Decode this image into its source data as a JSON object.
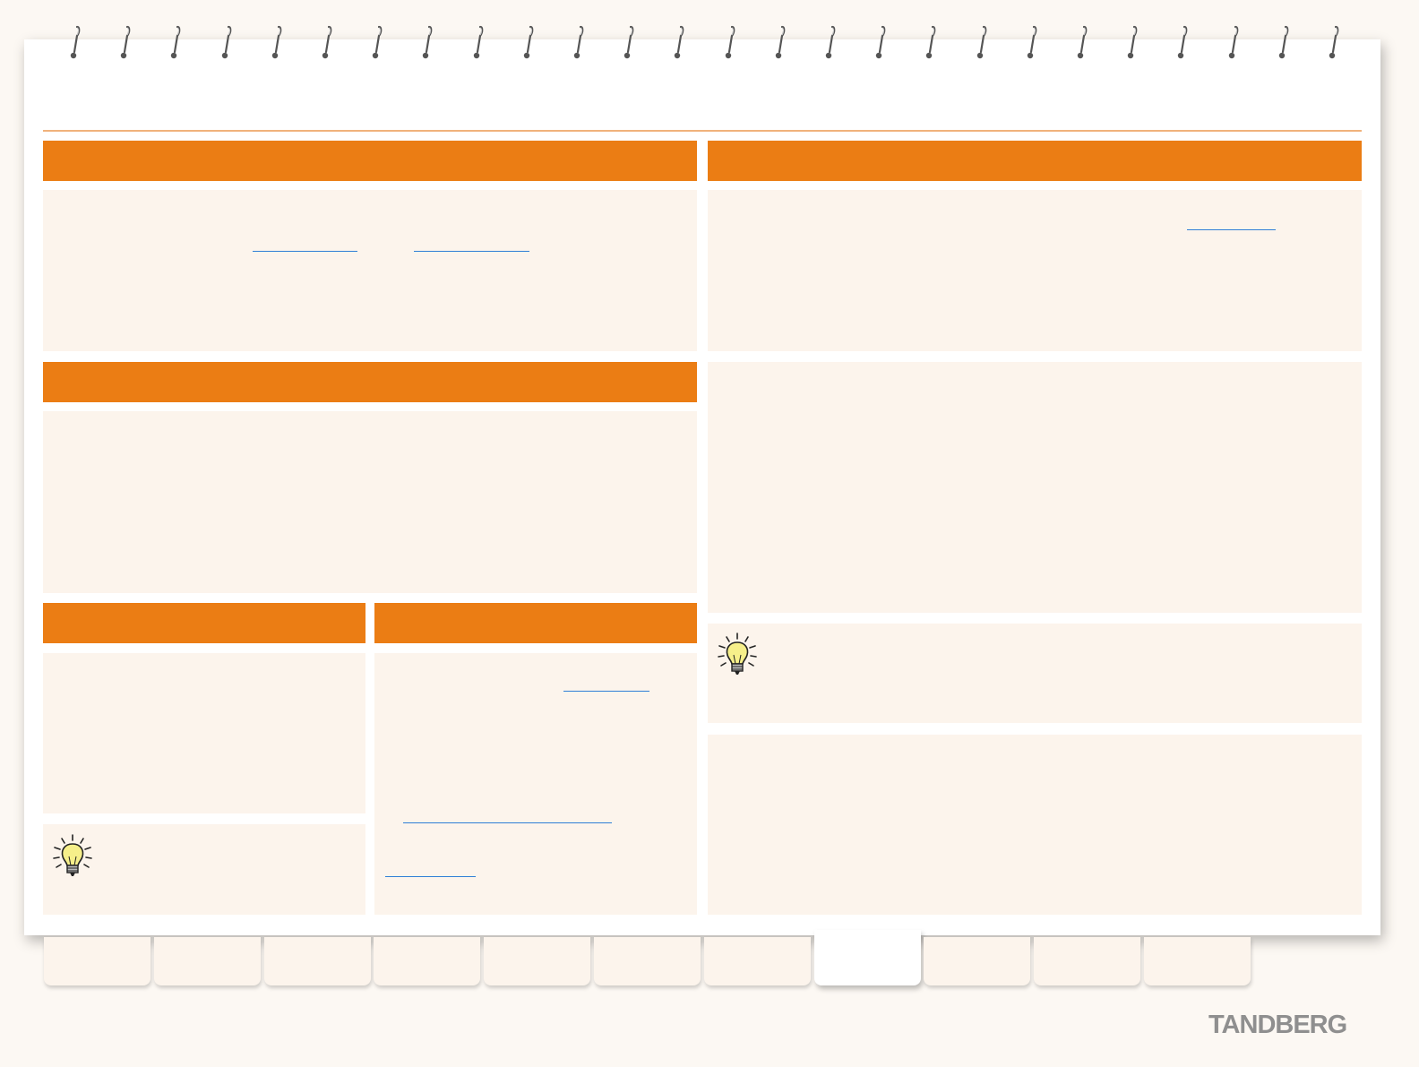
{
  "brand": {
    "name": "TANDBERG"
  },
  "colors": {
    "accent": "#eb7d14",
    "panel_background": "#fcf4ec",
    "link": "#2f7fd6",
    "page_background": "#fcf8f3"
  },
  "icons": {
    "tip_icon": "lightbulb-icon",
    "binding_icon": "spiral-ring-icon"
  },
  "navigation": {
    "tab_count": 11,
    "active_tab_position": 8
  }
}
